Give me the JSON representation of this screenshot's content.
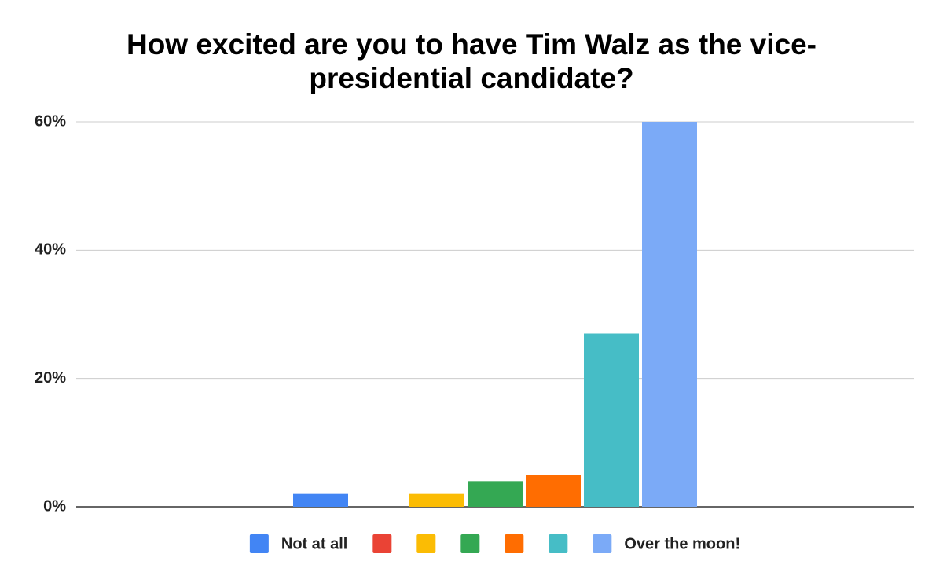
{
  "chart_data": {
    "type": "bar",
    "title": "How excited are you to have Tim Walz as the vice-presidential candidate?",
    "categories": [
      null
    ],
    "series": [
      {
        "name": "Not at all",
        "color": "#4285f4",
        "values": [
          2
        ]
      },
      {
        "name": null,
        "color": "#ea4335",
        "values": [
          0
        ]
      },
      {
        "name": null,
        "color": "#fbbc04",
        "values": [
          2
        ]
      },
      {
        "name": null,
        "color": "#34a853",
        "values": [
          4
        ]
      },
      {
        "name": null,
        "color": "#ff6d01",
        "values": [
          5
        ]
      },
      {
        "name": null,
        "color": "#46bdc6",
        "values": [
          27
        ]
      },
      {
        "name": "Over the moon!",
        "color": "#7baaf7",
        "values": [
          60
        ]
      }
    ],
    "ylim": [
      0,
      60
    ],
    "yticks": [
      {
        "value": 0,
        "label": "0%"
      },
      {
        "value": 20,
        "label": "20%"
      },
      {
        "value": 40,
        "label": "40%"
      },
      {
        "value": 60,
        "label": "60%"
      }
    ],
    "grid": true,
    "legend": "bottom"
  }
}
